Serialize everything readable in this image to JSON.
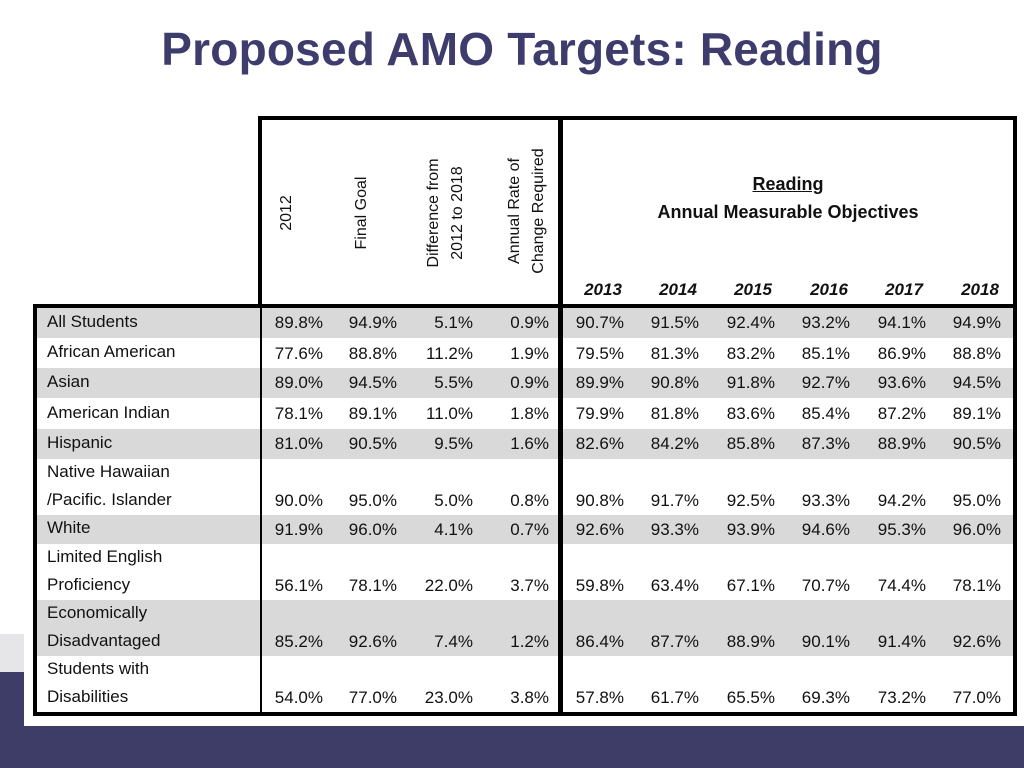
{
  "title": "Proposed AMO Targets: Reading",
  "header": {
    "col_2012": "2012",
    "col_final_goal": "Final Goal",
    "col_difference": [
      "Difference from",
      "2012 to 2018"
    ],
    "col_rate": [
      "Annual Rate of",
      "Change Required"
    ],
    "reading_label": "Reading",
    "amo_label": "Annual Measurable Objectives",
    "years": [
      "2013",
      "2014",
      "2015",
      "2016",
      "2017",
      "2018"
    ]
  },
  "rows": [
    {
      "label": [
        "All Students"
      ],
      "values": [
        "89.8%",
        "94.9%",
        "5.1%",
        "0.9%",
        "90.7%",
        "91.5%",
        "92.4%",
        "93.2%",
        "94.1%",
        "94.9%"
      ],
      "shaded": true
    },
    {
      "label": [
        "African American"
      ],
      "values": [
        "77.6%",
        "88.8%",
        "11.2%",
        "1.9%",
        "79.5%",
        "81.3%",
        "83.2%",
        "85.1%",
        "86.9%",
        "88.8%"
      ],
      "shaded": false
    },
    {
      "label": [
        "Asian"
      ],
      "values": [
        "89.0%",
        "94.5%",
        "5.5%",
        "0.9%",
        "89.9%",
        "90.8%",
        "91.8%",
        "92.7%",
        "93.6%",
        "94.5%"
      ],
      "shaded": true
    },
    {
      "label": [
        "American Indian"
      ],
      "values": [
        "78.1%",
        "89.1%",
        "11.0%",
        "1.8%",
        "79.9%",
        "81.8%",
        "83.6%",
        "85.4%",
        "87.2%",
        "89.1%"
      ],
      "shaded": false
    },
    {
      "label": [
        "Hispanic"
      ],
      "values": [
        "81.0%",
        "90.5%",
        "9.5%",
        "1.6%",
        "82.6%",
        "84.2%",
        "85.8%",
        "87.3%",
        "88.9%",
        "90.5%"
      ],
      "shaded": true
    },
    {
      "label": [
        "Native Hawaiian",
        "/Pacific. Islander"
      ],
      "values": [
        "90.0%",
        "95.0%",
        "5.0%",
        "0.8%",
        "90.8%",
        "91.7%",
        "92.5%",
        "93.3%",
        "94.2%",
        "95.0%"
      ],
      "shaded": false
    },
    {
      "label": [
        "White"
      ],
      "values": [
        "91.9%",
        "96.0%",
        "4.1%",
        "0.7%",
        "92.6%",
        "93.3%",
        "93.9%",
        "94.6%",
        "95.3%",
        "96.0%"
      ],
      "shaded": true
    },
    {
      "label": [
        "Limited English",
        "Proficiency"
      ],
      "values": [
        "56.1%",
        "78.1%",
        "22.0%",
        "3.7%",
        "59.8%",
        "63.4%",
        "67.1%",
        "70.7%",
        "74.4%",
        "78.1%"
      ],
      "shaded": false
    },
    {
      "label": [
        "Economically",
        "Disadvantaged"
      ],
      "values": [
        "85.2%",
        "92.6%",
        "7.4%",
        "1.2%",
        "86.4%",
        "87.7%",
        "88.9%",
        "90.1%",
        "91.4%",
        "92.6%"
      ],
      "shaded": true
    },
    {
      "label": [
        "Students with",
        "Disabilities"
      ],
      "values": [
        "54.0%",
        "77.0%",
        "23.0%",
        "3.8%",
        "57.8%",
        "61.7%",
        "65.5%",
        "69.3%",
        "73.2%",
        "77.0%"
      ],
      "shaded": false
    }
  ]
}
